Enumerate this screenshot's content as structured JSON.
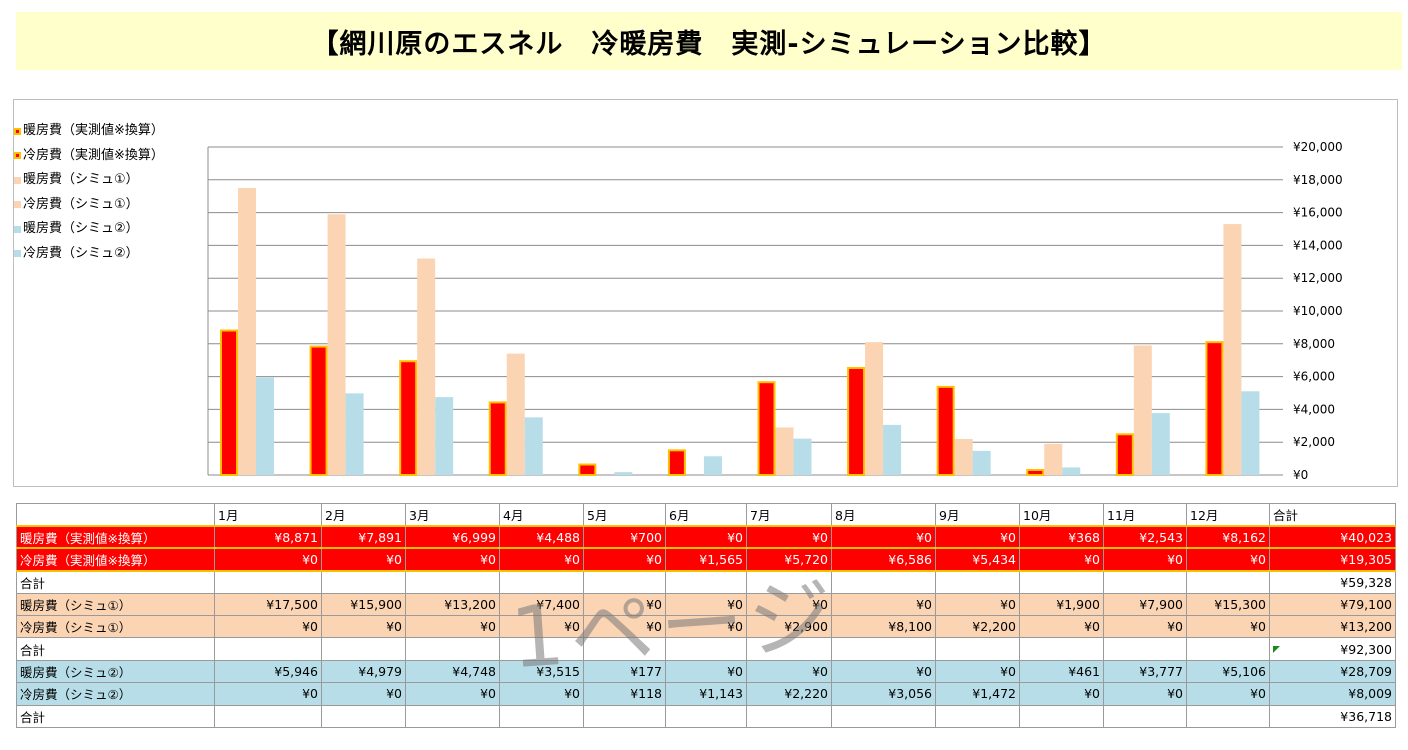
{
  "title": "【網川原のエスネル　冷暖房費　実測-シミュレーション比較】",
  "legend": [
    {
      "label": "暖房費（実測値※換算）",
      "color": "#ff0000",
      "border": "#ffc000"
    },
    {
      "label": "冷房費（実測値※換算）",
      "color": "#ff0000",
      "border": "#ffc000"
    },
    {
      "label": "暖房費（シミュ①）",
      "color": "#fbd4b4",
      "border": "#fbd4b4"
    },
    {
      "label": "冷房費（シミュ①）",
      "color": "#fbd4b4",
      "border": "#fbd4b4"
    },
    {
      "label": "暖房費（シミュ②）",
      "color": "#b7dee8",
      "border": "#b7dee8"
    },
    {
      "label": "冷房費（シミュ②）",
      "color": "#b7dee8",
      "border": "#b7dee8"
    }
  ],
  "chart_data": {
    "type": "bar",
    "categories": [
      "1月",
      "2月",
      "3月",
      "4月",
      "5月",
      "6月",
      "7月",
      "8月",
      "9月",
      "10月",
      "11月",
      "12月"
    ],
    "series": [
      {
        "name": "暖房費（実測値※換算）",
        "values": [
          8871,
          7891,
          6999,
          4488,
          700,
          0,
          0,
          0,
          0,
          368,
          2543,
          8162
        ],
        "color": "#ff0000"
      },
      {
        "name": "冷房費（実測値※換算）",
        "values": [
          0,
          0,
          0,
          0,
          0,
          1565,
          5720,
          6586,
          5434,
          0,
          0,
          0
        ],
        "color": "#ff0000"
      },
      {
        "name": "暖房費（シミュ①）",
        "values": [
          17500,
          15900,
          13200,
          7400,
          0,
          0,
          0,
          0,
          0,
          1900,
          7900,
          15300
        ],
        "color": "#fbd4b4"
      },
      {
        "name": "冷房費（シミュ①）",
        "values": [
          0,
          0,
          0,
          0,
          0,
          0,
          2900,
          8100,
          2200,
          0,
          0,
          0
        ],
        "color": "#fbd4b4"
      },
      {
        "name": "暖房費（シミュ②）",
        "values": [
          5946,
          4979,
          4748,
          3515,
          177,
          0,
          0,
          0,
          0,
          461,
          3777,
          5106
        ],
        "color": "#b7dee8"
      },
      {
        "name": "冷房費（シミュ②）",
        "values": [
          0,
          0,
          0,
          0,
          118,
          1143,
          2220,
          3056,
          1472,
          0,
          0,
          0
        ],
        "color": "#b7dee8"
      }
    ],
    "y_ticks": [
      "¥0",
      "¥2,000",
      "¥4,000",
      "¥6,000",
      "¥8,000",
      "¥10,000",
      "¥12,000",
      "¥14,000",
      "¥16,000",
      "¥18,000",
      "¥20,000"
    ],
    "ylim": [
      0,
      20000
    ],
    "y_axis_position": "right",
    "grid": true,
    "legend_position": "left",
    "colors": {
      "actual_fill": "#ff0000",
      "actual_border": "#ffc000",
      "sim1": "#fbd4b4",
      "sim2": "#b7dee8"
    }
  },
  "table": {
    "header": [
      "",
      "1月",
      "2月",
      "3月",
      "4月",
      "5月",
      "6月",
      "7月",
      "8月",
      "9月",
      "10月",
      "11月",
      "12月",
      "合計"
    ],
    "rows": [
      {
        "style": "red",
        "cells": [
          "暖房費（実測値※換算）",
          "¥8,871",
          "¥7,891",
          "¥6,999",
          "¥4,488",
          "¥700",
          "¥0",
          "¥0",
          "¥0",
          "¥0",
          "¥368",
          "¥2,543",
          "¥8,162",
          "¥40,023"
        ]
      },
      {
        "style": "red",
        "cells": [
          "冷房費（実測値※換算）",
          "¥0",
          "¥0",
          "¥0",
          "¥0",
          "¥0",
          "¥1,565",
          "¥5,720",
          "¥6,586",
          "¥5,434",
          "¥0",
          "¥0",
          "¥0",
          "¥19,305"
        ]
      },
      {
        "style": "white",
        "cells": [
          "合計",
          "",
          "",
          "",
          "",
          "",
          "",
          "",
          "",
          "",
          "",
          "",
          "",
          "¥59,328"
        ]
      },
      {
        "style": "peach",
        "cells": [
          "暖房費（シミュ①）",
          "¥17,500",
          "¥15,900",
          "¥13,200",
          "¥7,400",
          "¥0",
          "¥0",
          "¥0",
          "¥0",
          "¥0",
          "¥1,900",
          "¥7,900",
          "¥15,300",
          "¥79,100"
        ]
      },
      {
        "style": "peach",
        "cells": [
          "冷房費（シミュ①）",
          "¥0",
          "¥0",
          "¥0",
          "¥0",
          "¥0",
          "¥0",
          "¥2,900",
          "¥8,100",
          "¥2,200",
          "¥0",
          "¥0",
          "¥0",
          "¥13,200"
        ]
      },
      {
        "style": "white",
        "cells": [
          "合計",
          "",
          "",
          "",
          "",
          "",
          "",
          "",
          "",
          "",
          "",
          "",
          "",
          "¥92,300"
        ]
      },
      {
        "style": "blue",
        "cells": [
          "暖房費（シミュ②）",
          "¥5,946",
          "¥4,979",
          "¥4,748",
          "¥3,515",
          "¥177",
          "¥0",
          "¥0",
          "¥0",
          "¥0",
          "¥461",
          "¥3,777",
          "¥5,106",
          "¥28,709"
        ]
      },
      {
        "style": "blue",
        "cells": [
          "冷房費（シミュ②）",
          "¥0",
          "¥0",
          "¥0",
          "¥0",
          "¥118",
          "¥1,143",
          "¥2,220",
          "¥3,056",
          "¥1,472",
          "¥0",
          "¥0",
          "¥0",
          "¥8,009"
        ]
      },
      {
        "style": "white",
        "cells": [
          "合計",
          "",
          "",
          "",
          "",
          "",
          "",
          "",
          "",
          "",
          "",
          "",
          "",
          "¥36,718"
        ]
      }
    ]
  },
  "watermark": "1ページ"
}
